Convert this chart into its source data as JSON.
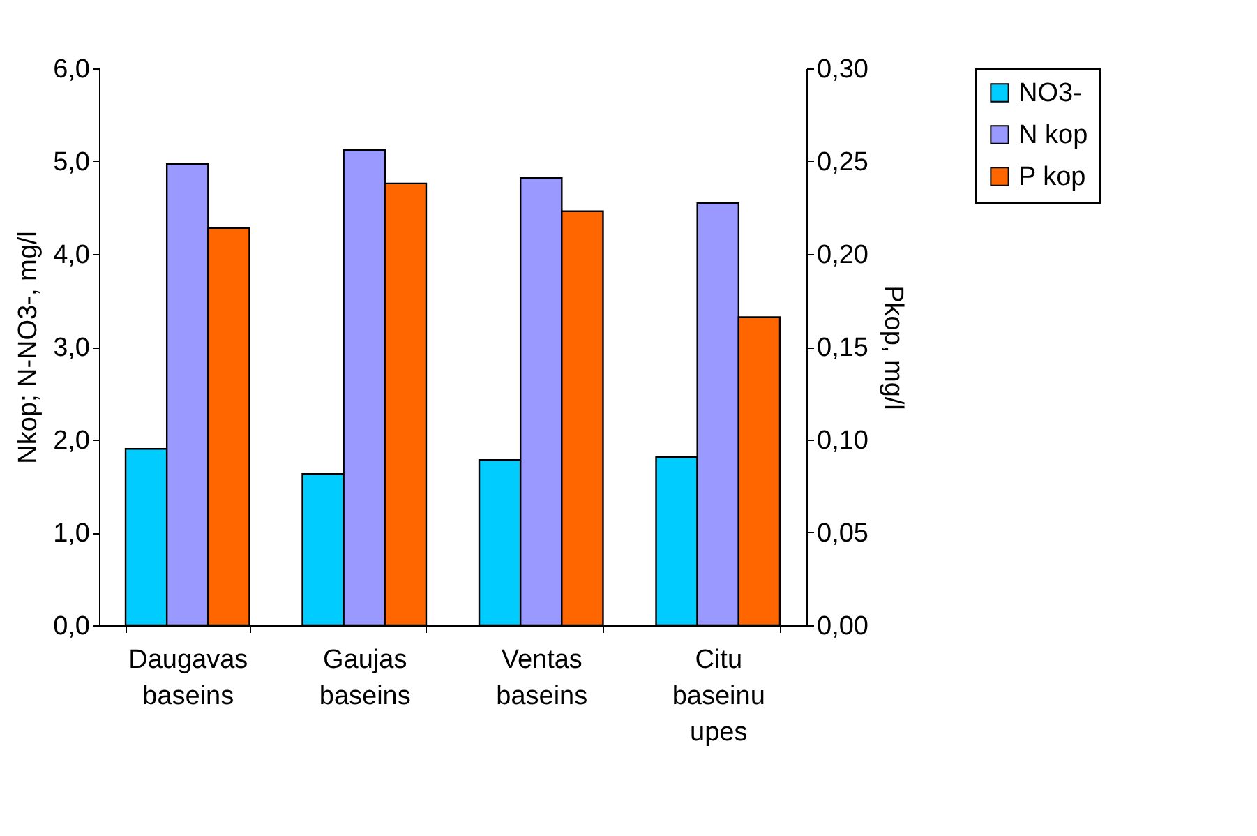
{
  "chart_data": {
    "type": "bar",
    "ylabel": "Nkop; N-NO3-, mg/l",
    "y2label": "Pkop, mg/l",
    "categories": [
      "Daugavas baseins",
      "Gaujas baseins",
      "Ventas baseins",
      "Citu baseinu upes"
    ],
    "series": [
      {
        "name": "NO3-",
        "color": "#00ccff",
        "values": [
          1.9,
          1.63,
          1.78,
          1.81
        ]
      },
      {
        "name": "N kop",
        "color": "#9999ff",
        "values": [
          4.97,
          5.12,
          4.82,
          4.55
        ]
      },
      {
        "name": "P kop",
        "color": "#ff6600",
        "axis": "y2",
        "values": [
          0.214,
          0.238,
          0.223,
          0.166
        ]
      }
    ],
    "ylim": [
      0,
      6
    ],
    "yticks": [
      {
        "value": 0,
        "label": "0,0"
      },
      {
        "value": 1,
        "label": "1,0"
      },
      {
        "value": 2,
        "label": "2,0"
      },
      {
        "value": 3,
        "label": "3,0"
      },
      {
        "value": 4,
        "label": "4,0"
      },
      {
        "value": 5,
        "label": "5,0"
      },
      {
        "value": 6,
        "label": "6,0"
      }
    ],
    "y2lim": [
      0,
      0.3
    ],
    "y2ticks": [
      {
        "value": 0,
        "label": "0,00"
      },
      {
        "value": 0.05,
        "label": "0,05"
      },
      {
        "value": 0.1,
        "label": "0,10"
      },
      {
        "value": 0.15,
        "label": "0,15"
      },
      {
        "value": 0.2,
        "label": "0,20"
      },
      {
        "value": 0.25,
        "label": "0,25"
      },
      {
        "value": 0.3,
        "label": "0,30"
      }
    ],
    "grid": false,
    "legend": "top right"
  }
}
